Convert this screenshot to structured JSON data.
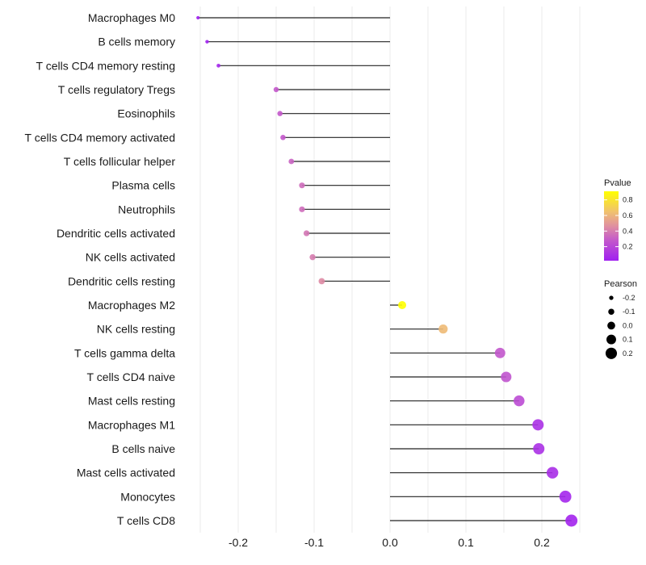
{
  "chart_data": {
    "type": "lollipop",
    "xlabel": "",
    "ylabel": "",
    "xlim": [
      -0.26,
      0.25
    ],
    "xticks": [
      "-0.2",
      "-0.1",
      "0.0",
      "0.1",
      "0.2"
    ],
    "xtick_values": [
      -0.2,
      -0.1,
      0.0,
      0.1,
      0.2
    ],
    "grid": true,
    "categories": [
      "Macrophages M0",
      "B cells memory",
      "T cells CD4 memory resting",
      "T cells regulatory  Tregs",
      "Eosinophils",
      "T cells CD4 memory activated",
      "T cells follicular helper",
      "Plasma cells",
      "Neutrophils",
      "Dendritic cells activated",
      "NK cells activated",
      "Dendritic cells resting",
      "Macrophages M2",
      "NK cells resting",
      "T cells gamma delta",
      "T cells CD4 naive",
      "Mast cells resting",
      "Macrophages M1",
      "B cells naive",
      "Mast cells activated",
      "Monocytes",
      "T cells CD8"
    ],
    "pearson": [
      -0.253,
      -0.241,
      -0.226,
      -0.15,
      -0.145,
      -0.141,
      -0.13,
      -0.116,
      -0.116,
      -0.11,
      -0.102,
      -0.09,
      0.016,
      0.07,
      0.145,
      0.153,
      0.17,
      0.195,
      0.196,
      0.214,
      0.231,
      0.239
    ],
    "pvalue": [
      0.02,
      0.03,
      0.05,
      0.28,
      0.28,
      0.28,
      0.32,
      0.35,
      0.35,
      0.38,
      0.4,
      0.45,
      0.91,
      0.62,
      0.27,
      0.26,
      0.22,
      0.1,
      0.1,
      0.08,
      0.05,
      0.04
    ],
    "color_legend": {
      "title": "Pvalue",
      "ticks": [
        "0.2",
        "0.4",
        "0.6",
        "0.8"
      ],
      "tick_values": [
        0.2,
        0.4,
        0.6,
        0.8
      ],
      "range": [
        0.02,
        0.91
      ],
      "low_color": "#A020F0",
      "high_color": "#FFFF00"
    },
    "size_legend": {
      "title": "Pearson",
      "labels": [
        "-0.2",
        "-0.1",
        "0.0",
        "0.1",
        "0.2"
      ],
      "values": [
        -0.2,
        -0.1,
        0.0,
        0.1,
        0.2
      ]
    },
    "legend_placement": "right"
  }
}
